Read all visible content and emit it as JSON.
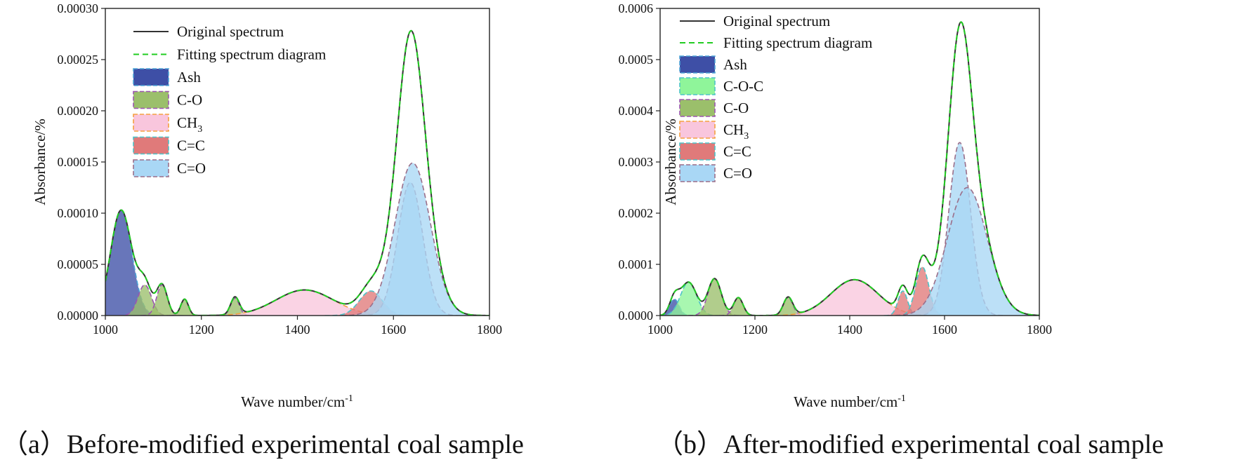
{
  "chart_data": [
    {
      "type": "line",
      "panel_id": "a",
      "caption": "（a）Before-modified experimental coal sample",
      "xlabel": "Wave number/cm",
      "xlabel_sup": "-1",
      "ylabel": "Absorbance/%",
      "xlim": [
        1000,
        1800
      ],
      "ylim": [
        0,
        0.0003
      ],
      "xticks": [
        1000,
        1200,
        1400,
        1600,
        1800
      ],
      "xtick_labels": [
        "1000",
        "1200",
        "1400",
        "1600",
        "1800"
      ],
      "yticks": [
        0,
        5e-05,
        0.0001,
        0.00015,
        0.0002,
        0.00025,
        0.0003
      ],
      "ytick_labels": [
        "0.00000",
        "0.00005",
        "0.00010",
        "0.00015",
        "0.00020",
        "0.00025",
        "0.00030"
      ],
      "legend_position": "top-left",
      "lines": [
        {
          "name": "Original spectrum",
          "color": "#333333"
        },
        {
          "name": "Fitting spectrum diagram",
          "color": "#22cc22"
        }
      ],
      "peaks": [
        {
          "group": "Ash",
          "center": 1033,
          "amplitude": 0.000103,
          "width": 22
        },
        {
          "group": "C-O",
          "center": 1082,
          "amplitude": 3e-05,
          "width": 14
        },
        {
          "group": "C-O",
          "center": 1118,
          "amplitude": 3e-05,
          "width": 11
        },
        {
          "group": "C-O",
          "center": 1165,
          "amplitude": 1.6e-05,
          "width": 8
        },
        {
          "group": "C-O",
          "center": 1270,
          "amplitude": 1.7e-05,
          "width": 9
        },
        {
          "group": "CH3",
          "center": 1415,
          "amplitude": 2.5e-05,
          "width": 60
        },
        {
          "group": "C=C",
          "center": 1553,
          "amplitude": 2.4e-05,
          "width": 24
        },
        {
          "group": "C=O",
          "center": 1635,
          "amplitude": 0.00013,
          "width": 26
        },
        {
          "group": "C=O",
          "center": 1640,
          "amplitude": 0.000149,
          "width": 37
        }
      ],
      "components": [
        {
          "name": "Ash",
          "fill": "#3e4fa6",
          "stroke": "#4da3d6"
        },
        {
          "name": "C-O",
          "fill": "#9bbf6b",
          "stroke": "#9b55b0"
        },
        {
          "name": "CH3",
          "label_main": "CH",
          "label_sub": "3",
          "fill": "#f9c6dd",
          "stroke": "#f5a040"
        },
        {
          "name": "C=C",
          "fill": "#e07a7a",
          "stroke": "#4dc3c8"
        },
        {
          "name": "C=O",
          "fill": "#a9d7f5",
          "stroke": "#9b6f8a"
        }
      ]
    },
    {
      "type": "line",
      "panel_id": "b",
      "caption": "（b）After-modified experimental coal sample",
      "xlabel": "Wave number/cm",
      "xlabel_sup": "-1",
      "ylabel": "Absorbance/%",
      "xlim": [
        1000,
        1800
      ],
      "ylim": [
        0,
        0.0006
      ],
      "xticks": [
        1000,
        1200,
        1400,
        1600,
        1800
      ],
      "xtick_labels": [
        "1000",
        "1200",
        "1400",
        "1600",
        "1800"
      ],
      "yticks": [
        0,
        0.0001,
        0.0002,
        0.0003,
        0.0004,
        0.0005,
        0.0006
      ],
      "ytick_labels": [
        "0.0000",
        "0.0001",
        "0.0002",
        "0.0003",
        "0.0004",
        "0.0005",
        "0.0006"
      ],
      "legend_position": "top-left",
      "lines": [
        {
          "name": "Original spectrum",
          "color": "#333333"
        },
        {
          "name": "Fitting spectrum diagram",
          "color": "#22cc22"
        }
      ],
      "peaks": [
        {
          "group": "Ash",
          "center": 1030,
          "amplitude": 3.2e-05,
          "width": 10
        },
        {
          "group": "C-O-C",
          "center": 1060,
          "amplitude": 6.5e-05,
          "width": 17
        },
        {
          "group": "C-O",
          "center": 1115,
          "amplitude": 7.2e-05,
          "width": 14
        },
        {
          "group": "C-O",
          "center": 1165,
          "amplitude": 3.5e-05,
          "width": 10
        },
        {
          "group": "C-O",
          "center": 1270,
          "amplitude": 3.5e-05,
          "width": 10
        },
        {
          "group": "CH3",
          "center": 1410,
          "amplitude": 7e-05,
          "width": 50
        },
        {
          "group": "C=C",
          "center": 1512,
          "amplitude": 4.8e-05,
          "width": 10
        },
        {
          "group": "C=C",
          "center": 1553,
          "amplitude": 9.5e-05,
          "width": 14
        },
        {
          "group": "C=O",
          "center": 1632,
          "amplitude": 0.000338,
          "width": 23
        },
        {
          "group": "C=O",
          "center": 1648,
          "amplitude": 0.00025,
          "width": 42
        }
      ],
      "components": [
        {
          "name": "Ash",
          "fill": "#3e4fa6",
          "stroke": "#4da3d6"
        },
        {
          "name": "C-O-C",
          "fill": "#8ff59a",
          "stroke": "#4dc3c8"
        },
        {
          "name": "C-O",
          "fill": "#9bbf6b",
          "stroke": "#9b55b0"
        },
        {
          "name": "CH3",
          "label_main": "CH",
          "label_sub": "3",
          "fill": "#f9c6dd",
          "stroke": "#f5a040"
        },
        {
          "name": "C=C",
          "fill": "#e07a7a",
          "stroke": "#4dc3c8"
        },
        {
          "name": "C=O",
          "fill": "#a9d7f5",
          "stroke": "#9b6f8a"
        }
      ]
    }
  ]
}
